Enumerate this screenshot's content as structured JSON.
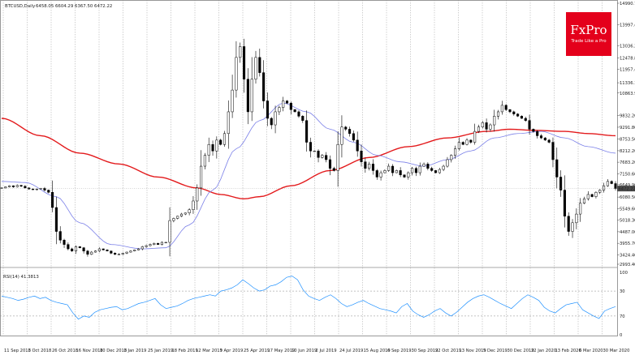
{
  "header": {
    "symbol_text": "BTCUSD,Daily",
    "ohlc_text": "6458.05 6604.29 6367.50 6472.22",
    "indicator_text": "RSI(14) 41.3813"
  },
  "logo": {
    "brand": "FxPro",
    "tagline": "Trade Like a Pro",
    "color": "#e4001b"
  },
  "colors": {
    "candles": "#000000",
    "fast_ma": "#7b80e8",
    "slow_ma": "#e31a1c",
    "rsi": "#1e90ff",
    "grid": "#8a8a8a",
    "price_tag": "#4a4a4a"
  },
  "chart_data": [
    {
      "type": "line",
      "title": "",
      "price_axis_labels": [
        "14990.76",
        "13997.40",
        "13036.20",
        "12478.80",
        "11957.40",
        "11336.12",
        "10863.90",
        "9832.20",
        "9291.80",
        "8753.50",
        "8212.20",
        "7683.20",
        "7150.60",
        "6649.90",
        "6080.50",
        "5549.60",
        "5018.30",
        "4487.00",
        "3955.70",
        "3424.40",
        "2993.40"
      ],
      "ylim": [
        2993.4,
        14990.76
      ],
      "current_price_label": "6472.22",
      "date_labels": [
        "11 Sep 2018",
        "3 Oct 2018",
        "26 Oct 2018",
        "16 Nov 2018",
        "10 Dec 2018",
        "3 Jan 2019",
        "25 Jan 2019",
        "18 Feb 2019",
        "12 Mar 2019",
        "3 Apr 2019",
        "25 Apr 2019",
        "17 May 2019",
        "10 Jun 2019",
        "2 Jul 2019",
        "24 Jul 2019",
        "15 Aug 2019",
        "6 Sep 2019",
        "30 Sep 2019",
        "22 Oct 2019",
        "13 Nov 2019",
        "5 Dec 2019",
        "30 Dec 2019",
        "22 Jan 2020",
        "13 Feb 2020",
        "6 Mar 2020",
        "30 Mar 2020"
      ],
      "grid": true,
      "price_series": {
        "name": "",
        "x": [
          0,
          1,
          2,
          3,
          4,
          5,
          6,
          7,
          8,
          9,
          10,
          11,
          12,
          13,
          14,
          15,
          16,
          17,
          18,
          19,
          20,
          21,
          22,
          23,
          24,
          25,
          26,
          27,
          28,
          29,
          30,
          31,
          32,
          33,
          34,
          35,
          36,
          37,
          38,
          39,
          40,
          41,
          42,
          43,
          44,
          45,
          46,
          47,
          48,
          49,
          50,
          51,
          52,
          53,
          54,
          55,
          56,
          57,
          58,
          59,
          60,
          61,
          62,
          63,
          64,
          65,
          66,
          67,
          68,
          69,
          70,
          71,
          72,
          73,
          74,
          75,
          76,
          77,
          78,
          79,
          80,
          81,
          82,
          83,
          84,
          85,
          86,
          87,
          88,
          89,
          90,
          91,
          92,
          93,
          94,
          95,
          96,
          97,
          98,
          99,
          100,
          101,
          102,
          103,
          104,
          105
        ],
        "values": [
          6500,
          6550,
          6600,
          6550,
          6620,
          6580,
          6500,
          6450,
          6420,
          6450,
          6480,
          6400,
          6300,
          5600,
          4500,
          4100,
          3900,
          3700,
          3600,
          3800,
          3750,
          3600,
          3450,
          3550,
          3600,
          3700,
          3650,
          3600,
          3500,
          3450,
          3450,
          3500,
          3550,
          3600,
          3650,
          3700,
          3800,
          3850,
          3900,
          3950,
          3900,
          4000,
          4000,
          5000,
          5100,
          5200,
          5300,
          5350,
          5500,
          5900,
          6500,
          7500,
          8000,
          8500,
          8200,
          8700,
          8500,
          9000,
          10000,
          11000,
          12500,
          13000,
          11500,
          10000,
          11500,
          12500,
          11800,
          10500,
          9700,
          9400,
          10000,
          10200,
          10500,
          10400,
          10100,
          10000,
          9800,
          9600,
          8600,
          8200,
          8200,
          7900,
          8000,
          7800,
          7400,
          7300,
          8500,
          9300,
          9200,
          9000,
          8700,
          8200,
          7700,
          7400,
          7600,
          7300,
          7000,
          7200,
          7300,
          7500,
          7200,
          7300,
          7100,
          7000,
          7200,
          7400
        ],
        "tail_x": [
          106,
          107,
          108,
          109,
          110,
          111,
          112,
          113,
          114,
          115,
          116,
          117,
          118,
          119,
          120,
          121,
          122,
          123,
          124,
          125,
          126,
          127,
          128,
          129,
          130,
          131,
          132,
          133,
          134,
          135,
          136,
          137,
          138,
          139,
          140,
          141,
          142,
          143,
          144,
          145,
          146,
          147,
          148,
          149,
          150,
          151,
          152,
          153,
          154,
          155,
          156,
          157
        ],
        "tail_values": [
          7200,
          7500,
          7600,
          7400,
          7300,
          7200,
          7350,
          7500,
          7800,
          8000,
          8300,
          8600,
          8500,
          8700,
          8600,
          9100,
          9300,
          9500,
          9200,
          9400,
          9800,
          10000,
          10300,
          10100,
          10000,
          9900,
          9800,
          9700,
          9600,
          9200,
          9100,
          8900,
          8800,
          8700,
          8600,
          7800,
          7000,
          6400,
          5200,
          4500,
          4900,
          5300,
          5800,
          6000,
          6200,
          6100,
          6300,
          6400,
          6600,
          6800,
          6700,
          6472
        ]
      },
      "moving_averages": [
        {
          "name": "",
          "color": "#7b80e8",
          "anchors": [
            [
              0,
              6800
            ],
            [
              6,
              6750
            ],
            [
              14,
              6100
            ],
            [
              20,
              4900
            ],
            [
              28,
              3900
            ],
            [
              36,
              3700
            ],
            [
              42,
              3750
            ],
            [
              48,
              4800
            ],
            [
              54,
              6400
            ],
            [
              60,
              8300
            ],
            [
              66,
              9600
            ],
            [
              72,
              10400
            ],
            [
              78,
              10000
            ],
            [
              84,
              9200
            ],
            [
              90,
              8600
            ],
            [
              96,
              8000
            ],
            [
              102,
              7700
            ],
            [
              108,
              7500
            ],
            [
              114,
              7800
            ],
            [
              120,
              8200
            ],
            [
              126,
              8800
            ],
            [
              132,
              9000
            ],
            [
              138,
              9100
            ],
            [
              144,
              8800
            ],
            [
              150,
              8400
            ],
            [
              157,
              8100
            ]
          ]
        },
        {
          "name": "",
          "color": "#e31a1c",
          "anchors": [
            [
              0,
              9700
            ],
            [
              10,
              8900
            ],
            [
              20,
              8100
            ],
            [
              30,
              7600
            ],
            [
              40,
              7000
            ],
            [
              50,
              6500
            ],
            [
              56,
              6200
            ],
            [
              62,
              6000
            ],
            [
              66,
              6100
            ],
            [
              74,
              6600
            ],
            [
              84,
              7300
            ],
            [
              94,
              7900
            ],
            [
              104,
              8400
            ],
            [
              114,
              8800
            ],
            [
              124,
              9100
            ],
            [
              130,
              9200
            ],
            [
              136,
              9150
            ],
            [
              144,
              9100
            ],
            [
              150,
              9000
            ],
            [
              157,
              8900
            ]
          ]
        }
      ]
    },
    {
      "type": "line",
      "title": "",
      "ylim": [
        0,
        100
      ],
      "levels": [
        30,
        70
      ],
      "level_labels": [
        "30",
        "70",
        "100",
        "0"
      ],
      "series": [
        {
          "name": "",
          "values": [
            62,
            60,
            58,
            55,
            57,
            60,
            62,
            58,
            60,
            55,
            52,
            50,
            48,
            35,
            25,
            30,
            28,
            36,
            40,
            42,
            44,
            45,
            40,
            42,
            46,
            50,
            52,
            55,
            58,
            48,
            42,
            44,
            46,
            50,
            55,
            58,
            60,
            62,
            64,
            62,
            70,
            72,
            75,
            80,
            88,
            82,
            75,
            70,
            72,
            78,
            80,
            85,
            92,
            94,
            88,
            72,
            62,
            58,
            55,
            60,
            64,
            58,
            50,
            45,
            48,
            52,
            55,
            50,
            46,
            42,
            40,
            38,
            35,
            45,
            50,
            38,
            32,
            28,
            32,
            38,
            42,
            35,
            30,
            36,
            44,
            52,
            58,
            62,
            64,
            60,
            55,
            50,
            46,
            42,
            50,
            58,
            64,
            60,
            55,
            44,
            38,
            35,
            42,
            48,
            50,
            52,
            40,
            35,
            30,
            26,
            38,
            42,
            45
          ]
        }
      ]
    }
  ]
}
